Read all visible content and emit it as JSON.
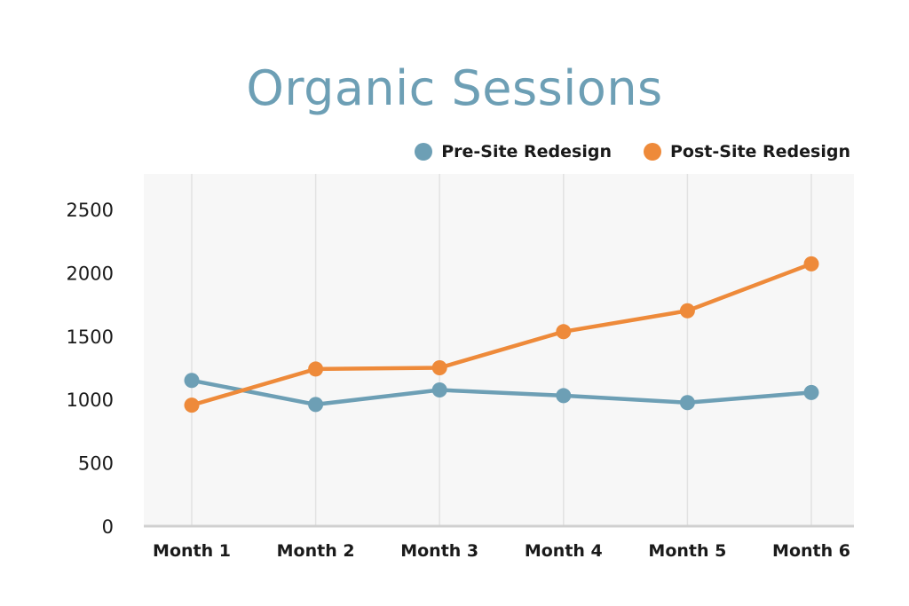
{
  "chart_data": {
    "type": "line",
    "title": "Organic Sessions",
    "categories": [
      "Month 1",
      "Month 2",
      "Month 3",
      "Month 4",
      "Month 5",
      "Month 6"
    ],
    "series": [
      {
        "name": "Pre-Site Redesign",
        "color": "#6d9fb5",
        "values": [
          1150,
          960,
          1075,
          1030,
          975,
          1055
        ]
      },
      {
        "name": "Post-Site Redesign",
        "color": "#ee8a3a",
        "values": [
          955,
          1240,
          1250,
          1535,
          1700,
          2070
        ]
      }
    ],
    "yticks": [
      "0",
      "500",
      "1000",
      "1500",
      "2000",
      "2500"
    ],
    "ylim": [
      0,
      2750
    ],
    "xlabel": "",
    "ylabel": "",
    "grid": "vertical",
    "legend": "top-right"
  }
}
